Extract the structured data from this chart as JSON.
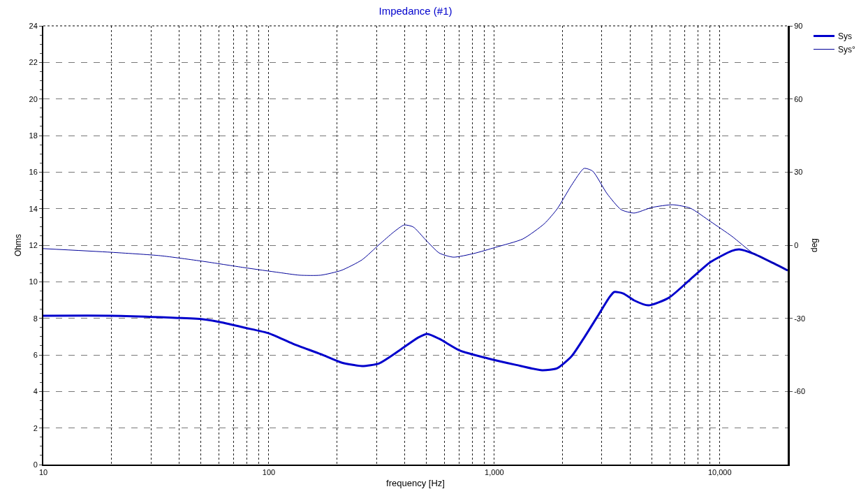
{
  "chart_data": {
    "type": "line",
    "title": "Impedance (#1)",
    "xlabel": "frequency [Hz]",
    "ylabel": "Ohms",
    "y2label": "deg",
    "log": "x",
    "grid": true,
    "legend": "top right",
    "line_style": "solid",
    "marker": "none",
    "xlim": [
      10,
      20000
    ],
    "xticks": [
      10,
      {
        "value": 20,
        "label": null
      },
      {
        "value": 30,
        "label": null
      },
      {
        "value": 40,
        "label": null
      },
      {
        "value": 50,
        "label": null
      },
      {
        "value": 60,
        "label": null
      },
      {
        "value": 70,
        "label": null
      },
      {
        "value": 80,
        "label": null
      },
      {
        "value": 90,
        "label": null
      },
      100,
      {
        "value": 200,
        "label": null
      },
      {
        "value": 300,
        "label": null
      },
      {
        "value": 400,
        "label": null
      },
      {
        "value": 500,
        "label": null
      },
      {
        "value": 600,
        "label": null
      },
      {
        "value": 700,
        "label": null
      },
      {
        "value": 800,
        "label": null
      },
      {
        "value": 900,
        "label": null
      },
      {
        "value": 1000,
        "label": "1,000"
      },
      {
        "value": 2000,
        "label": null
      },
      {
        "value": 3000,
        "label": null
      },
      {
        "value": 4000,
        "label": null
      },
      {
        "value": 5000,
        "label": null
      },
      {
        "value": 6000,
        "label": null
      },
      {
        "value": 7000,
        "label": null
      },
      {
        "value": 8000,
        "label": null
      },
      {
        "value": 9000,
        "label": null
      },
      {
        "value": 10000,
        "label": "10,000"
      }
    ],
    "ylim": [
      0,
      24
    ],
    "yticks": [
      0,
      2,
      4,
      6,
      8,
      10,
      12,
      14,
      16,
      18,
      20,
      22,
      24
    ],
    "y2lim": [
      -90,
      90
    ],
    "y2ticks": [
      -60,
      -30,
      0,
      30,
      60,
      90
    ],
    "series": [
      {
        "name": "Sys",
        "color": "#0000cc",
        "x": [
          10,
          20,
          33,
          51,
          63,
          78,
          100,
          128,
          170,
          210,
          259,
          309,
          385,
          460,
          505,
          570,
          705,
          935,
          1240,
          1630,
          1900,
          2200,
          2520,
          2900,
          3230,
          3400,
          3730,
          4170,
          4820,
          5950,
          7400,
          9100,
          11300,
          12200,
          14100,
          17400,
          20000
        ],
        "values": [
          8.14,
          8.14,
          8.06,
          7.95,
          7.76,
          7.49,
          7.18,
          6.61,
          6.04,
          5.58,
          5.39,
          5.54,
          6.3,
          6.95,
          7.15,
          6.88,
          6.23,
          5.81,
          5.46,
          5.16,
          5.27,
          5.92,
          7.0,
          8.2,
          9.13,
          9.44,
          9.36,
          8.98,
          8.71,
          9.13,
          10.13,
          11.08,
          11.69,
          11.77,
          11.54,
          11.0,
          10.62
        ]
      },
      {
        "name": "Sys°",
        "color": "#000099",
        "axis": "y2",
        "x": [
          10,
          20,
          33,
          51,
          78,
          111,
          137,
          170,
          210,
          259,
          309,
          358,
          398,
          437,
          495,
          570,
          658,
          811,
          1010,
          1340,
          1670,
          1900,
          2200,
          2500,
          2730,
          3160,
          3650,
          4170,
          5000,
          6190,
          7400,
          9100,
          11300,
          14100,
          17400,
          20000
        ],
        "values": [
          -1.4,
          -2.9,
          -4.3,
          -6.6,
          -9.2,
          -11.2,
          -12.3,
          -12.3,
          -10.3,
          -6.0,
          0.3,
          5.4,
          8.3,
          7.5,
          2.3,
          -3.2,
          -4.9,
          -3.4,
          -0.9,
          2.6,
          8.9,
          14.9,
          24.6,
          31.5,
          30.4,
          21.2,
          14.6,
          13.2,
          15.5,
          16.6,
          15.2,
          9.7,
          3.7,
          -3.4,
          -7.5,
          -10.3
        ]
      }
    ]
  }
}
